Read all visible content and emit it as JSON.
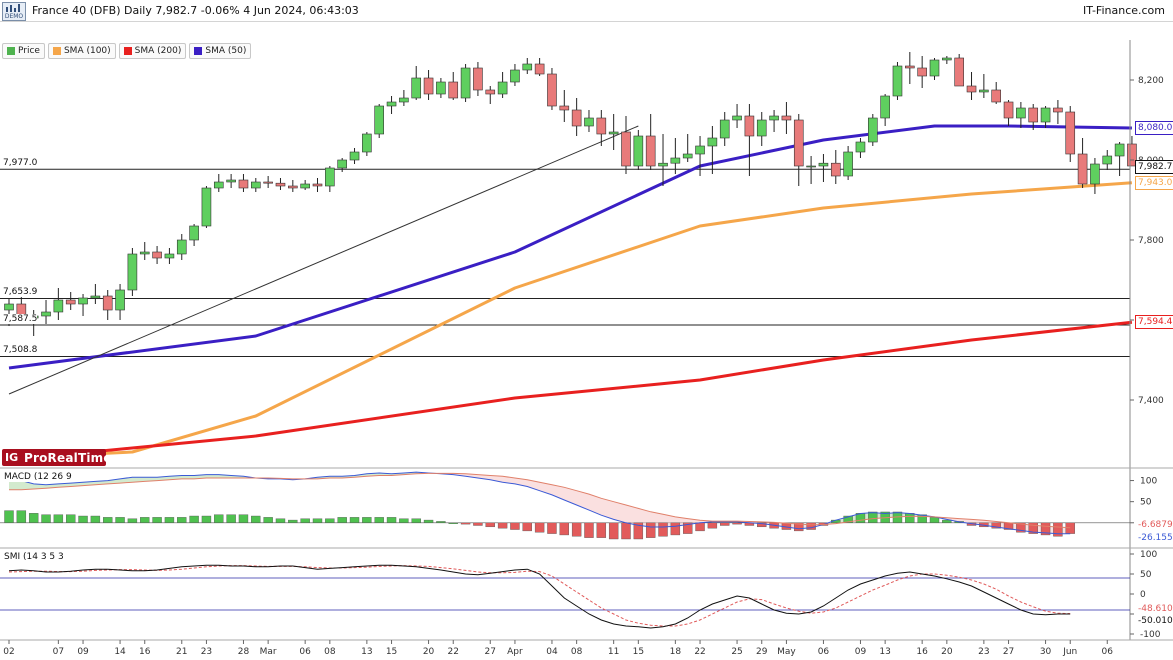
{
  "header": {
    "logo_text": "DEMO",
    "title": "France 40 (DFB) Daily 7,982.7 -0.06% 4 Jun 2024, 06:43:03",
    "brand": "IT-Finance.com"
  },
  "legend": [
    {
      "label": "Price",
      "color": "#4fb34f",
      "icon": "candle-icon"
    },
    {
      "label": "SMA (100)",
      "color": "#f5a64a",
      "icon": "square-icon"
    },
    {
      "label": "SMA (200)",
      "color": "#e8201f",
      "icon": "square-icon"
    },
    {
      "label": "SMA (50)",
      "color": "#3a1fc4",
      "icon": "square-icon"
    }
  ],
  "watermark": {
    "text": "ProRealTime",
    "mark": "IG"
  },
  "price_levels": [
    {
      "label": "7,977.0",
      "value": 7977.0
    },
    {
      "label": "7,653.9",
      "value": 7653.9
    },
    {
      "label": "7,587.5",
      "value": 7587.5
    },
    {
      "label": "7,508.8",
      "value": 7508.8
    }
  ],
  "right_labels": [
    {
      "label": "8,080.0",
      "value": 8080.0,
      "color": "#3a1fc4"
    },
    {
      "label": "7,982.7",
      "value": 7982.7,
      "color": "#111111"
    },
    {
      "label": "7,943.0",
      "value": 7943.0,
      "color": "#f5a64a"
    },
    {
      "label": "7,594.4",
      "value": 7594.4,
      "color": "#e8201f"
    }
  ],
  "macd": {
    "label": "MACD (12 26 9",
    "ticks": [
      "100",
      "50",
      "0"
    ],
    "value_labels": [
      "-6.6879",
      "-26.155"
    ]
  },
  "smi": {
    "label": "SMI (14 3 5 3",
    "ticks": [
      "100",
      "50",
      "0",
      "-50",
      "-100"
    ],
    "value_labels": [
      "-48.610",
      "-50.010"
    ]
  },
  "chart_data": {
    "type": "candlestick",
    "title": "France 40 (DFB) Daily",
    "ylim": [
      7230,
      8300
    ],
    "yticks": [
      7400,
      7600,
      7800,
      8000,
      8200
    ],
    "ytick_labels": [
      "7,400",
      "7,600",
      "7,800",
      "8,000",
      "8,200"
    ],
    "x_tick_labels": [
      {
        "i": 0,
        "label": "02"
      },
      {
        "i": 4,
        "label": "07"
      },
      {
        "i": 6,
        "label": "09"
      },
      {
        "i": 9,
        "label": "14"
      },
      {
        "i": 11,
        "label": "16"
      },
      {
        "i": 14,
        "label": "21"
      },
      {
        "i": 16,
        "label": "23"
      },
      {
        "i": 19,
        "label": "28"
      },
      {
        "i": 21,
        "label": "Mar"
      },
      {
        "i": 24,
        "label": "06"
      },
      {
        "i": 26,
        "label": "08"
      },
      {
        "i": 29,
        "label": "13"
      },
      {
        "i": 31,
        "label": "15"
      },
      {
        "i": 34,
        "label": "20"
      },
      {
        "i": 36,
        "label": "22"
      },
      {
        "i": 39,
        "label": "27"
      },
      {
        "i": 41,
        "label": "Apr"
      },
      {
        "i": 44,
        "label": "04"
      },
      {
        "i": 46,
        "label": "08"
      },
      {
        "i": 49,
        "label": "11"
      },
      {
        "i": 51,
        "label": "15"
      },
      {
        "i": 54,
        "label": "18"
      },
      {
        "i": 56,
        "label": "22"
      },
      {
        "i": 59,
        "label": "25"
      },
      {
        "i": 61,
        "label": "29"
      },
      {
        "i": 63,
        "label": "May"
      },
      {
        "i": 66,
        "label": "06"
      },
      {
        "i": 69,
        "label": "09"
      },
      {
        "i": 71,
        "label": "13"
      },
      {
        "i": 74,
        "label": "16"
      },
      {
        "i": 76,
        "label": "20"
      },
      {
        "i": 79,
        "label": "23"
      },
      {
        "i": 81,
        "label": "27"
      },
      {
        "i": 84,
        "label": "30"
      },
      {
        "i": 86,
        "label": "Jun"
      },
      {
        "i": 89,
        "label": "06"
      }
    ],
    "ohlc": [
      [
        7625,
        7655,
        7585,
        7640
      ],
      [
        7640,
        7670,
        7595,
        7605
      ],
      [
        7605,
        7625,
        7560,
        7610
      ],
      [
        7610,
        7650,
        7590,
        7620
      ],
      [
        7620,
        7680,
        7600,
        7650
      ],
      [
        7650,
        7670,
        7625,
        7640
      ],
      [
        7640,
        7665,
        7610,
        7655
      ],
      [
        7655,
        7690,
        7640,
        7660
      ],
      [
        7660,
        7675,
        7600,
        7625
      ],
      [
        7625,
        7690,
        7600,
        7675
      ],
      [
        7675,
        7780,
        7660,
        7765
      ],
      [
        7765,
        7795,
        7750,
        7770
      ],
      [
        7770,
        7785,
        7740,
        7755
      ],
      [
        7755,
        7780,
        7740,
        7765
      ],
      [
        7765,
        7815,
        7750,
        7800
      ],
      [
        7800,
        7840,
        7785,
        7835
      ],
      [
        7835,
        7935,
        7830,
        7930
      ],
      [
        7930,
        7965,
        7920,
        7945
      ],
      [
        7945,
        7965,
        7930,
        7950
      ],
      [
        7950,
        7965,
        7920,
        7930
      ],
      [
        7930,
        7955,
        7920,
        7945
      ],
      [
        7945,
        7960,
        7930,
        7942
      ],
      [
        7942,
        7955,
        7925,
        7935
      ],
      [
        7935,
        7950,
        7920,
        7930
      ],
      [
        7930,
        7950,
        7925,
        7940
      ],
      [
        7940,
        7955,
        7920,
        7935
      ],
      [
        7935,
        7985,
        7920,
        7980
      ],
      [
        7980,
        8005,
        7970,
        8000
      ],
      [
        8000,
        8030,
        7990,
        8020
      ],
      [
        8020,
        8070,
        8010,
        8065
      ],
      [
        8065,
        8140,
        8055,
        8135
      ],
      [
        8135,
        8160,
        8115,
        8145
      ],
      [
        8145,
        8175,
        8135,
        8155
      ],
      [
        8155,
        8235,
        8150,
        8205
      ],
      [
        8205,
        8225,
        8150,
        8165
      ],
      [
        8165,
        8205,
        8155,
        8195
      ],
      [
        8195,
        8220,
        8150,
        8155
      ],
      [
        8155,
        8240,
        8145,
        8230
      ],
      [
        8230,
        8245,
        8160,
        8175
      ],
      [
        8175,
        8185,
        8140,
        8165
      ],
      [
        8165,
        8220,
        8155,
        8195
      ],
      [
        8195,
        8240,
        8185,
        8225
      ],
      [
        8225,
        8255,
        8215,
        8240
      ],
      [
        8240,
        8255,
        8210,
        8215
      ],
      [
        8215,
        8230,
        8125,
        8135
      ],
      [
        8135,
        8175,
        8095,
        8125
      ],
      [
        8125,
        8155,
        8060,
        8085
      ],
      [
        8085,
        8125,
        8070,
        8105
      ],
      [
        8105,
        8125,
        8035,
        8065
      ],
      [
        8065,
        8115,
        8025,
        8070
      ],
      [
        8070,
        8110,
        7965,
        7985
      ],
      [
        7985,
        8075,
        7975,
        8060
      ],
      [
        8060,
        8115,
        7975,
        7985
      ],
      [
        7985,
        8065,
        7935,
        7992
      ],
      [
        7992,
        8055,
        7965,
        8005
      ],
      [
        8005,
        8065,
        7995,
        8015
      ],
      [
        8015,
        8060,
        7960,
        8035
      ],
      [
        8035,
        8085,
        7965,
        8055
      ],
      [
        8055,
        8120,
        8035,
        8100
      ],
      [
        8100,
        8140,
        8080,
        8110
      ],
      [
        8110,
        8140,
        7960,
        8060
      ],
      [
        8060,
        8120,
        8035,
        8100
      ],
      [
        8100,
        8125,
        8070,
        8110
      ],
      [
        8110,
        8145,
        8065,
        8100
      ],
      [
        8100,
        8115,
        7935,
        7985
      ],
      [
        7985,
        8010,
        7940,
        7985
      ],
      [
        7985,
        8015,
        7945,
        7992
      ],
      [
        7992,
        8025,
        7940,
        7960
      ],
      [
        7960,
        8035,
        7950,
        8020
      ],
      [
        8020,
        8055,
        8005,
        8045
      ],
      [
        8045,
        8115,
        8035,
        8105
      ],
      [
        8105,
        8165,
        8085,
        8160
      ],
      [
        8160,
        8245,
        8150,
        8235
      ],
      [
        8235,
        8270,
        8190,
        8230
      ],
      [
        8230,
        8260,
        8180,
        8210
      ],
      [
        8210,
        8255,
        8200,
        8250
      ],
      [
        8250,
        8260,
        8240,
        8255
      ],
      [
        8255,
        8265,
        8185,
        8185
      ],
      [
        8185,
        8220,
        8150,
        8170
      ],
      [
        8170,
        8215,
        8155,
        8175
      ],
      [
        8175,
        8195,
        8140,
        8145
      ],
      [
        8145,
        8150,
        8085,
        8105
      ],
      [
        8105,
        8145,
        8080,
        8130
      ],
      [
        8130,
        8140,
        8075,
        8095
      ],
      [
        8095,
        8135,
        8080,
        8130
      ],
      [
        8130,
        8150,
        8090,
        8120
      ],
      [
        8120,
        8135,
        7995,
        8015
      ],
      [
        8015,
        8055,
        7930,
        7940
      ],
      [
        7940,
        8005,
        7915,
        7990
      ],
      [
        7990,
        8025,
        7975,
        8010
      ],
      [
        8010,
        8045,
        7960,
        8040
      ],
      [
        8040,
        8060,
        7985,
        7985
      ],
      [
        7985,
        7990,
        7975,
        7982.7
      ]
    ],
    "series": [
      {
        "name": "SMA (50)",
        "color": "#3a1fc4",
        "x": [
          0,
          20,
          41,
          56,
          66,
          75,
          81,
          91
        ],
        "y": [
          7480,
          7560,
          7770,
          7985,
          8050,
          8085,
          8085,
          8080
        ]
      },
      {
        "name": "SMA (100)",
        "color": "#f5a64a",
        "x": [
          0,
          10,
          20,
          41,
          56,
          66,
          78,
          91
        ],
        "y": [
          7255,
          7270,
          7360,
          7680,
          7835,
          7880,
          7915,
          7943
        ]
      },
      {
        "name": "SMA (200)",
        "color": "#e8201f",
        "x": [
          0,
          20,
          41,
          56,
          66,
          78,
          91
        ],
        "y": [
          7250,
          7310,
          7405,
          7450,
          7500,
          7550,
          7594.4
        ]
      }
    ],
    "trendline": {
      "x": [
        0,
        51
      ],
      "y": [
        7415,
        8085
      ]
    },
    "macd": {
      "ylim": [
        -55,
        125
      ],
      "macd_line": [
        110,
        100,
        92,
        90,
        92,
        94,
        96,
        98,
        100,
        104,
        108,
        108,
        108,
        110,
        112,
        112,
        114,
        114,
        112,
        110,
        106,
        104,
        104,
        102,
        104,
        108,
        110,
        110,
        112,
        116,
        118,
        116,
        118,
        120,
        118,
        116,
        114,
        110,
        106,
        102,
        96,
        92,
        86,
        76,
        66,
        54,
        42,
        30,
        18,
        8,
        0,
        -6,
        -10,
        -10,
        -8,
        -4,
        0,
        2,
        2,
        2,
        0,
        -2,
        -6,
        -10,
        -14,
        -12,
        -4,
        6,
        14,
        22,
        24,
        22,
        24,
        22,
        18,
        14,
        8,
        2,
        -2,
        -6,
        -10,
        -14,
        -18,
        -22,
        -24,
        -26,
        -26
      ],
      "signal_line": [
        78,
        78,
        80,
        82,
        84,
        86,
        88,
        90,
        92,
        94,
        96,
        98,
        100,
        102,
        104,
        104,
        106,
        106,
        106,
        106,
        106,
        106,
        105,
        104,
        104,
        104,
        106,
        106,
        108,
        110,
        112,
        112,
        114,
        116,
        117,
        117,
        117,
        116,
        114,
        112,
        110,
        106,
        102,
        96,
        90,
        84,
        76,
        68,
        58,
        50,
        42,
        34,
        26,
        20,
        14,
        10,
        6,
        4,
        4,
        4,
        3,
        2,
        1,
        -1,
        -3,
        -5,
        -4,
        -2,
        2,
        6,
        10,
        12,
        14,
        15,
        15,
        14,
        12,
        10,
        8,
        6,
        3,
        0,
        -3,
        -6,
        -8,
        -10,
        -12
      ],
      "histogram": [
        9,
        9,
        7,
        6,
        6,
        6,
        5,
        5,
        4,
        4,
        3,
        4,
        4,
        4,
        4,
        5,
        5,
        6,
        6,
        6,
        5,
        4,
        3,
        2,
        3,
        3,
        3,
        4,
        4,
        4,
        4,
        4,
        3,
        3,
        2,
        1,
        0,
        -1,
        -2,
        -3,
        -4,
        -5,
        -6,
        -7,
        -8,
        -9,
        -10,
        -11,
        -11,
        -12,
        -12,
        -12,
        -11,
        -10,
        -9,
        -8,
        -6,
        -4,
        -2,
        -1,
        -2,
        -3,
        -4,
        -5,
        -6,
        -5,
        -2,
        2,
        5,
        7,
        8,
        8,
        8,
        7,
        6,
        4,
        2,
        1,
        -2,
        -3,
        -4,
        -5,
        -7,
        -8,
        -9,
        -10,
        -8
      ],
      "last_values": [
        -6.6879,
        -26.155
      ]
    },
    "smi": {
      "ylim": [
        -110,
        110
      ],
      "levels": [
        40,
        -40
      ],
      "smi_line": [
        58,
        60,
        58,
        55,
        55,
        57,
        60,
        62,
        62,
        60,
        58,
        58,
        60,
        64,
        68,
        70,
        72,
        72,
        70,
        70,
        68,
        68,
        70,
        70,
        66,
        62,
        64,
        66,
        68,
        70,
        72,
        72,
        70,
        68,
        64,
        60,
        55,
        50,
        48,
        52,
        56,
        60,
        62,
        50,
        20,
        -10,
        -30,
        -50,
        -65,
        -75,
        -80,
        -82,
        -85,
        -82,
        -75,
        -60,
        -40,
        -25,
        -15,
        -5,
        -10,
        -25,
        -40,
        -48,
        -50,
        -45,
        -30,
        -10,
        10,
        25,
        35,
        45,
        52,
        55,
        50,
        45,
        38,
        30,
        20,
        5,
        -10,
        -25,
        -40,
        -50,
        -52,
        -50,
        -50
      ],
      "signal_line": [
        55,
        56,
        57,
        57,
        56,
        56,
        57,
        59,
        60,
        61,
        61,
        60,
        59,
        60,
        62,
        65,
        68,
        70,
        71,
        71,
        70,
        69,
        69,
        69,
        68,
        66,
        65,
        65,
        66,
        67,
        69,
        70,
        71,
        70,
        69,
        66,
        63,
        59,
        55,
        53,
        53,
        54,
        57,
        56,
        45,
        25,
        5,
        -15,
        -35,
        -50,
        -65,
        -73,
        -78,
        -80,
        -80,
        -75,
        -65,
        -50,
        -35,
        -20,
        -12,
        -14,
        -25,
        -35,
        -43,
        -48,
        -45,
        -35,
        -20,
        -5,
        10,
        22,
        35,
        45,
        50,
        50,
        47,
        42,
        35,
        25,
        12,
        -5,
        -20,
        -32,
        -43,
        -48,
        -49
      ],
      "last_values": [
        -48.61,
        -50.01
      ]
    }
  }
}
